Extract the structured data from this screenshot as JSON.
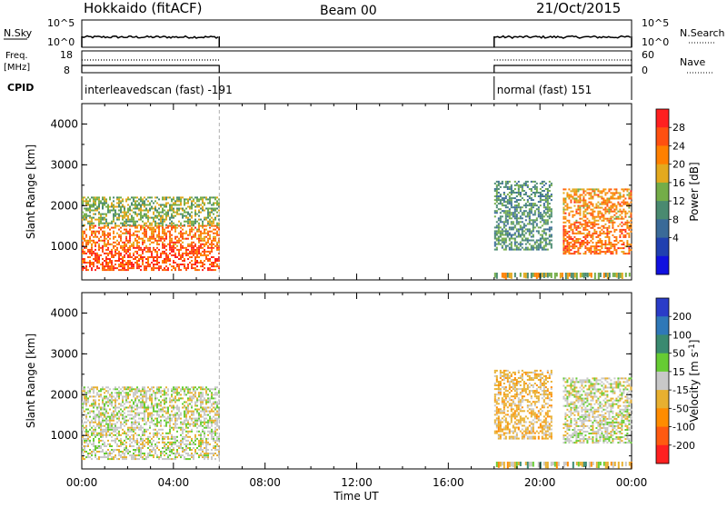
{
  "header": {
    "station": "Hokkaido (fitACF)",
    "beam": "Beam 00",
    "date": "21/Oct/2015"
  },
  "nsky_panel": {
    "left_label": "N.Sky",
    "right_label": "N.Search",
    "left_ticks": [
      "10^5",
      "10^0"
    ],
    "right_ticks": [
      "10^5",
      "10^0"
    ]
  },
  "freq_panel": {
    "left_label_1": "Freq.",
    "left_label_2": "[MHz]",
    "right_label": "Nave",
    "left_ticks": [
      "18",
      "8"
    ],
    "right_ticks": [
      "60",
      "0"
    ]
  },
  "cpid_panel": {
    "label": "CPID",
    "programs": [
      {
        "name": "interleavedscan (fast) -191",
        "start_hour": 0,
        "end_hour": 6
      },
      {
        "name": "normal (fast) 151",
        "start_hour": 18,
        "end_hour": 24
      }
    ]
  },
  "chart_data": [
    {
      "type": "heatmap",
      "title": "",
      "xlabel": "Time UT",
      "ylabel": "Slant Range [km]",
      "xlim": [
        0,
        24
      ],
      "ylim": [
        180,
        4500
      ],
      "x_ticks": [
        "00:00",
        "04:00",
        "08:00",
        "12:00",
        "16:00",
        "20:00",
        "00:00"
      ],
      "y_ticks": [
        1000,
        2000,
        3000,
        4000
      ],
      "colorbar": {
        "label": "Power [dB]",
        "ticks": [
          4,
          8,
          12,
          16,
          20,
          24,
          28
        ],
        "colors": [
          "#1010e0",
          "#2040b0",
          "#3a6a98",
          "#4a8a70",
          "#74ad48",
          "#e3a91e",
          "#ff8000",
          "#ff5010",
          "#ff2020"
        ]
      },
      "regions": [
        {
          "start_hour": 0.0,
          "end_hour": 6.0,
          "range_min": 400,
          "range_max": 1500,
          "level": 28
        },
        {
          "start_hour": 0.0,
          "end_hour": 6.0,
          "range_min": 1500,
          "range_max": 2200,
          "level": 16
        },
        {
          "start_hour": 21.0,
          "end_hour": 24.0,
          "range_min": 800,
          "range_max": 2400,
          "level": 26
        },
        {
          "start_hour": 18.0,
          "end_hour": 20.5,
          "range_min": 900,
          "range_max": 2600,
          "level": 12
        }
      ]
    },
    {
      "type": "heatmap",
      "title": "",
      "xlabel": "Time UT",
      "ylabel": "Slant Range [km]",
      "xlim": [
        0,
        24
      ],
      "ylim": [
        180,
        4500
      ],
      "x_ticks": [
        "00:00",
        "04:00",
        "08:00",
        "12:00",
        "16:00",
        "20:00",
        "00:00"
      ],
      "y_ticks": [
        1000,
        2000,
        3000,
        4000
      ],
      "colorbar": {
        "label": "Velocity [m s^-1]",
        "ticks": [
          200,
          100,
          50,
          15,
          -15,
          -50,
          -100,
          -200
        ],
        "colors": [
          "#2a3cc8",
          "#2f78b8",
          "#3a8a70",
          "#66cc33",
          "#c8c8c8",
          "#e8b030",
          "#ff8c00",
          "#ff5a10",
          "#ff2020"
        ]
      },
      "regions": [
        {
          "start_hour": 0.0,
          "end_hour": 6.0,
          "range_min": 400,
          "range_max": 2200,
          "level": 0
        },
        {
          "start_hour": 21.0,
          "end_hour": 24.0,
          "range_min": 800,
          "range_max": 2400,
          "level": 0
        },
        {
          "start_hour": 18.0,
          "end_hour": 20.5,
          "range_min": 900,
          "range_max": 2600,
          "level": -30
        }
      ]
    }
  ]
}
